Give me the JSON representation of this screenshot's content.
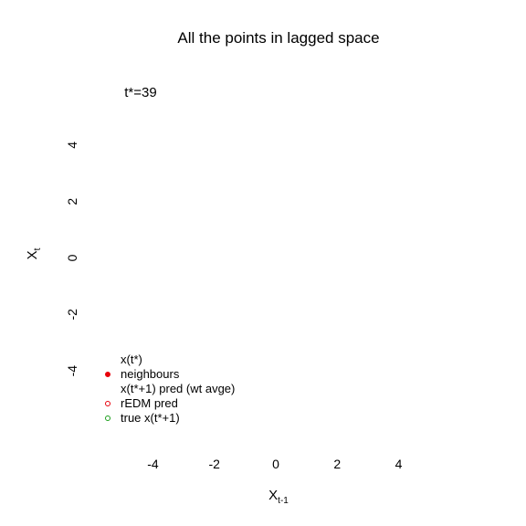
{
  "chart_data": {
    "type": "scatter",
    "title": "All the points in lagged space",
    "annotation": "t*=39",
    "xlabel": "X",
    "xlabel_subscript": "t-1",
    "ylabel": "X",
    "ylabel_subscript": "t",
    "xlim": [
      -5.5,
      5.5
    ],
    "ylim": [
      -5.5,
      5.5
    ],
    "xticks": [
      -4,
      -2,
      0,
      2,
      4
    ],
    "yticks": [
      -4,
      -2,
      0,
      2,
      4
    ],
    "xtick_labels": [
      "-4",
      "-2",
      "0",
      "2",
      "4"
    ],
    "ytick_labels": [
      "-4",
      "-2",
      "0",
      "2",
      "4"
    ],
    "grid": false,
    "legend_position": "bottom-left",
    "legend": [
      {
        "label": "x(t*)",
        "marker": "none",
        "color": ""
      },
      {
        "label": "neighbours",
        "marker": "filled-circle",
        "color": "#e8000b"
      },
      {
        "label": "x(t*+1) pred (wt avge)",
        "marker": "none",
        "color": ""
      },
      {
        "label": "rEDM pred",
        "marker": "open-circle",
        "color": "#e8000b"
      },
      {
        "label": "true x(t*+1)",
        "marker": "open-circle",
        "color": "#1a9e1a"
      }
    ],
    "series": []
  }
}
